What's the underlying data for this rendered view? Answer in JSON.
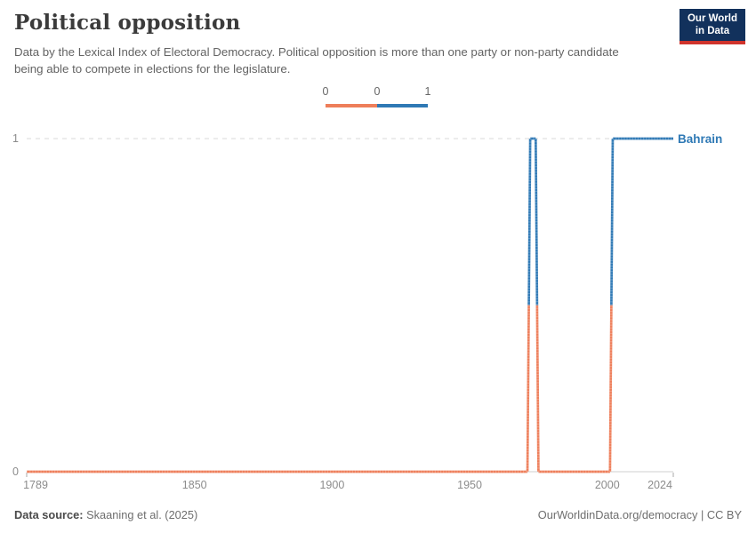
{
  "header": {
    "title": "Political opposition",
    "subtitle": "Data by the Lexical Index of Electoral Democracy. Political opposition is more than one party or non-party candidate being able to compete in elections for the legislature.",
    "logo": {
      "line1": "Our World",
      "line2": "in Data"
    }
  },
  "legend": {
    "labels": [
      "0",
      "0",
      "1"
    ],
    "bin_colors": [
      "#EE7E5A",
      "#2F79B5"
    ]
  },
  "chart_data": {
    "type": "line",
    "title": "Political opposition",
    "xlabel": "",
    "ylabel": "",
    "xlim": [
      1789,
      2024
    ],
    "ylim": [
      0,
      1
    ],
    "x_ticks": [
      1789,
      1850,
      1900,
      1950,
      2000,
      2024
    ],
    "y_ticks": [
      0,
      1
    ],
    "grid": "dashed-top-solid-bottom",
    "legend_position": "top-center",
    "value_colors": {
      "0": "#EE7E5A",
      "1": "#2F79B5"
    },
    "series": [
      {
        "name": "Bahrain",
        "points": [
          [
            1789,
            0
          ],
          [
            1971,
            0
          ],
          [
            1972,
            1
          ],
          [
            1974,
            1
          ],
          [
            1975,
            0
          ],
          [
            2001,
            0
          ],
          [
            2002,
            1
          ],
          [
            2024,
            1
          ]
        ]
      }
    ]
  },
  "footer": {
    "source_label": "Data source:",
    "source_text": " Skaaning et al. (2025)",
    "credit": "OurWorldinData.org/democracy | CC BY"
  },
  "colors": {
    "accent_orange": "#EE7E5A",
    "accent_blue": "#2F79B5",
    "logo_navy": "#12315c",
    "logo_red": "#d0342c"
  }
}
